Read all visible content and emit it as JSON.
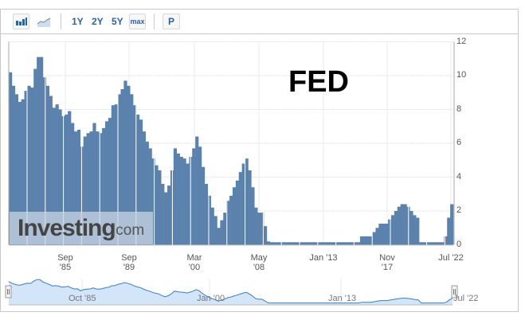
{
  "toolbar": {
    "bar_chart_icon": "bar-chart-icon",
    "line_chart_icon": "line-chart-icon",
    "ranges": [
      "1Y",
      "2Y",
      "5Y",
      "max"
    ],
    "p_label": "P"
  },
  "annotation": "FED",
  "watermark": "Investing.com",
  "navigator": {
    "labels": [
      "Oct '85",
      "Jan '00",
      "Jan '13",
      "Jul '22"
    ]
  },
  "colors": {
    "bar": "#5b82ad",
    "navigator_fill": "#d3e5f8",
    "navigator_line": "#3b7dc4",
    "grid": "#ebebeb"
  },
  "chart_data": {
    "type": "bar",
    "title": "",
    "xlabel": "",
    "ylabel": "",
    "ylim": [
      0,
      12
    ],
    "y_ticks": [
      "0",
      "2",
      "4",
      "6",
      "8",
      "10",
      "12"
    ],
    "x_ticks": [
      "Sep '85",
      "Sep '89",
      "Mar '00",
      "May '08",
      "Jan '13",
      "Nov '17",
      "Jul '22"
    ],
    "grid": true,
    "y_axis_side": "right",
    "values": [
      10.2,
      9.4,
      8.9,
      8.45,
      8.6,
      9.1,
      9.4,
      9.3,
      10.4,
      11.1,
      11.1,
      9.9,
      9.4,
      8.8,
      8.1,
      8.3,
      8.0,
      7.6,
      7.7,
      7.9,
      7.2,
      6.7,
      6.8,
      5.8,
      6.4,
      6.6,
      6.7,
      7.2,
      6.7,
      6.6,
      6.9,
      7.3,
      7.5,
      8.25,
      8.3,
      8.9,
      9.2,
      9.7,
      9.4,
      8.9,
      8.25,
      7.7,
      7.4,
      6.7,
      6.1,
      5.7,
      5.1,
      4.7,
      4.4,
      3.6,
      3.1,
      3.5,
      4.4,
      5.7,
      5.4,
      5.2,
      5.1,
      4.8,
      5.2,
      5.7,
      6.4,
      5.8,
      4.6,
      3.6,
      2.9,
      2.2,
      1.7,
      1.0,
      1.45,
      1.9,
      2.6,
      2.9,
      3.4,
      3.8,
      4.3,
      4.8,
      5.1,
      4.4,
      3.4,
      2.2,
      1.9,
      1.9,
      1.1,
      0.2,
      0.15,
      0.15,
      0.15,
      0.15,
      0.15,
      0.15,
      0.15,
      0.15,
      0.15,
      0.15,
      0.15,
      0.15,
      0.15,
      0.15,
      0.15,
      0.15,
      0.15,
      0.15,
      0.15,
      0.15,
      0.15,
      0.15,
      0.15,
      0.15,
      0.15,
      0.15,
      0.15,
      0.15,
      0.15,
      0.5,
      0.5,
      0.5,
      0.5,
      0.75,
      1.0,
      1.25,
      1.25,
      1.25,
      1.5,
      1.75,
      2.0,
      2.25,
      2.4,
      2.4,
      2.25,
      2.0,
      1.75,
      1.6,
      0.15,
      0.15,
      0.15,
      0.15,
      0.15,
      0.15,
      0.15,
      0.15,
      0.5,
      1.6,
      2.4
    ]
  }
}
